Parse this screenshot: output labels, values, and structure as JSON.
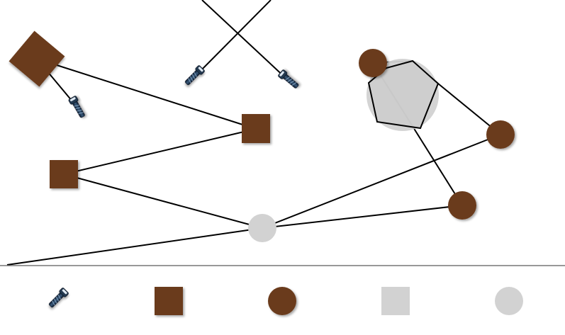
{
  "colors": {
    "background": "#ffffff",
    "rope": "#000000",
    "brown": "#6b3a1a",
    "grey": "#d2d2d2",
    "grey_stroke": "#c4c4c4",
    "shelf_line": "#777777",
    "bolt_dark": "#1a2e44",
    "bolt_light": "#cfe0ee"
  },
  "icons": {
    "bolt": "bolt-icon",
    "brown_square": "brown-square-icon",
    "brown_circle": "brown-circle-icon",
    "grey_square": "grey-square-icon",
    "grey_circle": "grey-circle-icon"
  },
  "toolbar": {
    "items": [
      {
        "name": "toolbar-bolt-item",
        "icon": "bolt"
      },
      {
        "name": "toolbar-brown-square-item",
        "icon": "brown-square"
      },
      {
        "name": "toolbar-brown-circle-item",
        "icon": "brown-circle"
      },
      {
        "name": "toolbar-grey-square-item",
        "icon": "grey-square"
      },
      {
        "name": "toolbar-grey-circle-item",
        "icon": "grey-circle"
      }
    ]
  }
}
